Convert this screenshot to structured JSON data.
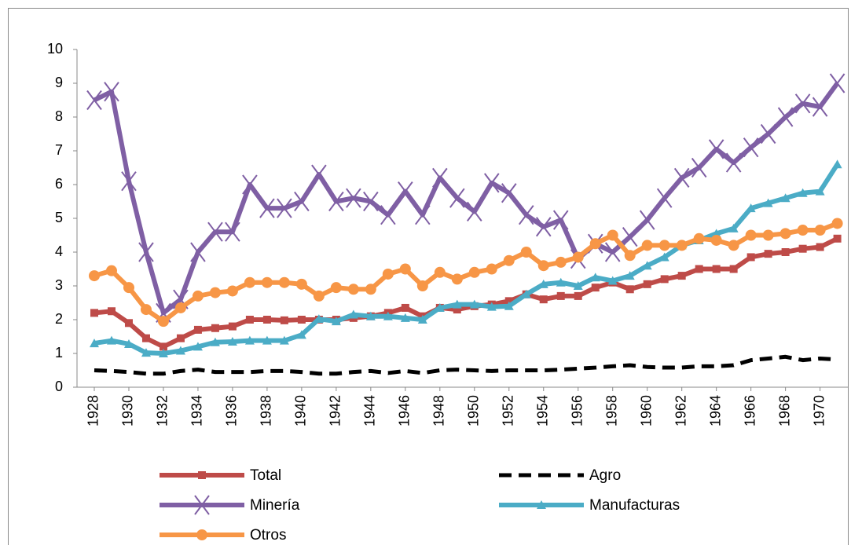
{
  "chart_data": {
    "type": "line",
    "x": [
      1928,
      1929,
      1930,
      1931,
      1932,
      1933,
      1934,
      1935,
      1936,
      1937,
      1938,
      1939,
      1940,
      1941,
      1942,
      1943,
      1944,
      1945,
      1946,
      1947,
      1948,
      1949,
      1950,
      1951,
      1952,
      1953,
      1954,
      1955,
      1956,
      1957,
      1958,
      1959,
      1960,
      1961,
      1962,
      1963,
      1964,
      1965,
      1966,
      1967,
      1968,
      1969,
      1970,
      1971
    ],
    "xlim": [
      1927,
      1971.2
    ],
    "xticks": [
      1928,
      1930,
      1932,
      1934,
      1936,
      1938,
      1940,
      1942,
      1944,
      1946,
      1948,
      1950,
      1952,
      1954,
      1956,
      1958,
      1960,
      1962,
      1964,
      1966,
      1968,
      1970
    ],
    "ylim": [
      0,
      10
    ],
    "yticks": [
      0,
      1,
      2,
      3,
      4,
      5,
      6,
      7,
      8,
      9,
      10
    ],
    "grid": false,
    "series": [
      {
        "name": "Total",
        "color": "#be4b48",
        "marker": "square",
        "dashed": false,
        "values": [
          2.2,
          2.25,
          1.9,
          1.45,
          1.2,
          1.45,
          1.7,
          1.75,
          1.8,
          2.0,
          2.0,
          1.98,
          2.0,
          2.0,
          2.0,
          2.05,
          2.1,
          2.2,
          2.35,
          2.1,
          2.35,
          2.3,
          2.4,
          2.45,
          2.55,
          2.75,
          2.6,
          2.7,
          2.7,
          2.95,
          3.1,
          2.9,
          3.05,
          3.2,
          3.3,
          3.5,
          3.5,
          3.5,
          3.85,
          3.95,
          4.0,
          4.1,
          4.15,
          4.4
        ]
      },
      {
        "name": "Agro",
        "color": "#000000",
        "marker": "none",
        "dashed": true,
        "values": [
          0.5,
          0.48,
          0.45,
          0.4,
          0.4,
          0.48,
          0.52,
          0.45,
          0.45,
          0.45,
          0.48,
          0.48,
          0.45,
          0.4,
          0.4,
          0.45,
          0.48,
          0.42,
          0.48,
          0.42,
          0.5,
          0.52,
          0.5,
          0.48,
          0.5,
          0.5,
          0.5,
          0.52,
          0.55,
          0.58,
          0.62,
          0.65,
          0.6,
          0.58,
          0.58,
          0.62,
          0.62,
          0.65,
          0.8,
          0.85,
          0.9,
          0.8,
          0.85,
          0.82
        ]
      },
      {
        "name": "Minería",
        "color": "#7f5fa4",
        "marker": "x",
        "dashed": false,
        "values": [
          8.5,
          8.75,
          6.1,
          4.0,
          2.2,
          2.6,
          4.0,
          4.6,
          4.6,
          6.0,
          5.3,
          5.3,
          5.5,
          6.3,
          5.5,
          5.6,
          5.5,
          5.1,
          5.8,
          5.1,
          6.2,
          5.6,
          5.2,
          6.05,
          5.75,
          5.1,
          4.75,
          4.95,
          3.8,
          4.25,
          4.0,
          4.45,
          4.95,
          5.6,
          6.2,
          6.5,
          7.05,
          6.65,
          7.1,
          7.5,
          8.0,
          8.4,
          8.3,
          9.0
        ]
      },
      {
        "name": "Manufacturas",
        "color": "#4bacc6",
        "marker": "triangle",
        "dashed": false,
        "values": [
          1.3,
          1.38,
          1.28,
          1.02,
          1.0,
          1.08,
          1.2,
          1.33,
          1.35,
          1.38,
          1.38,
          1.38,
          1.55,
          2.02,
          1.95,
          2.15,
          2.1,
          2.1,
          2.05,
          2.0,
          2.35,
          2.45,
          2.45,
          2.38,
          2.4,
          2.75,
          3.05,
          3.1,
          3.0,
          3.25,
          3.15,
          3.3,
          3.6,
          3.85,
          4.2,
          4.35,
          4.55,
          4.7,
          5.3,
          5.45,
          5.6,
          5.75,
          5.8,
          6.6
        ]
      },
      {
        "name": "Otros",
        "color": "#f79646",
        "marker": "circle",
        "dashed": false,
        "values": [
          3.3,
          3.45,
          2.95,
          2.3,
          1.95,
          2.35,
          2.7,
          2.8,
          2.85,
          3.1,
          3.1,
          3.1,
          3.05,
          2.7,
          2.95,
          2.9,
          2.9,
          3.35,
          3.5,
          3.0,
          3.4,
          3.2,
          3.4,
          3.5,
          3.75,
          4.0,
          3.6,
          3.7,
          3.85,
          4.25,
          4.5,
          3.9,
          4.2,
          4.2,
          4.2,
          4.4,
          4.35,
          4.2,
          4.5,
          4.5,
          4.55,
          4.65,
          4.65,
          4.85
        ]
      }
    ]
  }
}
